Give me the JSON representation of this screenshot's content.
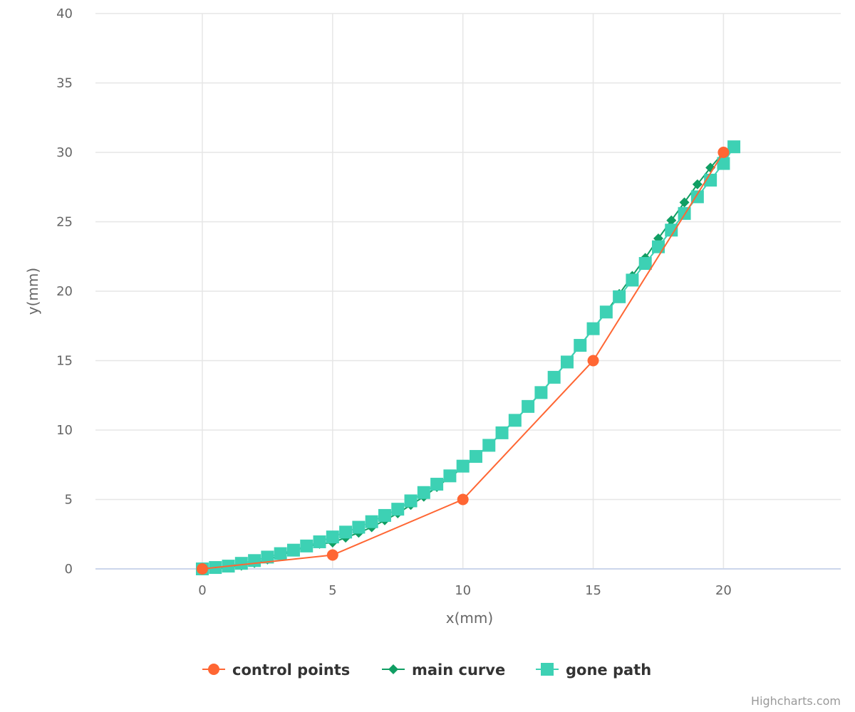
{
  "credits": "Highcharts.com",
  "chart_data": {
    "type": "line",
    "title": "",
    "xlabel": "x(mm)",
    "ylabel": "y(mm)",
    "xlim": [
      -4.1,
      24.5
    ],
    "ylim": [
      0,
      40
    ],
    "x_ticks": [
      "0",
      "5",
      "10",
      "15",
      "20"
    ],
    "y_ticks": [
      "0",
      "5",
      "10",
      "15",
      "20",
      "25",
      "30",
      "35",
      "40"
    ],
    "grid": true,
    "legend_position": "bottom-center",
    "series": [
      {
        "name": "control points",
        "marker": "circle",
        "color": "#ff6633",
        "x": [
          0,
          5,
          10,
          15,
          20
        ],
        "y": [
          0,
          1,
          5,
          15,
          30
        ]
      },
      {
        "name": "main curve",
        "marker": "diamond",
        "color": "#109e63",
        "x": [
          0,
          0.5,
          1,
          1.5,
          2,
          2.5,
          3,
          3.5,
          4,
          4.5,
          5,
          5.5,
          6,
          6.5,
          7,
          7.5,
          8,
          8.5,
          9,
          9.5,
          10,
          10.5,
          11,
          11.5,
          12,
          12.5,
          13,
          13.5,
          14,
          14.5,
          15,
          15.5,
          16,
          16.5,
          17,
          17.5,
          18,
          18.5,
          19,
          19.5,
          20
        ],
        "y": [
          0,
          0.02,
          0.1,
          0.23,
          0.42,
          0.67,
          0.97,
          1.3,
          1.6,
          1.8,
          1.9,
          2.25,
          2.6,
          3.0,
          3.5,
          4.0,
          4.6,
          5.2,
          5.9,
          6.6,
          7.3,
          8.1,
          8.9,
          9.8,
          10.7,
          11.7,
          12.7,
          13.8,
          14.9,
          16.1,
          17.3,
          18.5,
          19.8,
          21.1,
          22.4,
          23.8,
          25.1,
          26.4,
          27.7,
          28.9,
          30.0
        ]
      },
      {
        "name": "gone path",
        "marker": "square",
        "color": "#3dd1b4",
        "x": [
          0,
          0.5,
          1,
          1.5,
          2,
          2.5,
          3,
          3.5,
          4,
          4.5,
          5,
          5.5,
          6,
          6.5,
          7,
          7.5,
          8,
          8.5,
          9,
          9.5,
          10,
          10.5,
          11,
          11.5,
          12,
          12.5,
          13,
          13.5,
          14,
          14.5,
          15,
          15.5,
          16,
          16.5,
          17,
          17.5,
          18,
          18.5,
          19,
          19.5,
          20,
          20.4
        ],
        "y": [
          0,
          0.1,
          0.2,
          0.4,
          0.6,
          0.85,
          1.1,
          1.35,
          1.65,
          1.95,
          2.3,
          2.65,
          3.0,
          3.4,
          3.85,
          4.3,
          4.9,
          5.5,
          6.1,
          6.7,
          7.4,
          8.1,
          8.9,
          9.8,
          10.7,
          11.7,
          12.7,
          13.8,
          14.9,
          16.1,
          17.3,
          18.5,
          19.6,
          20.8,
          22.0,
          23.2,
          24.4,
          25.6,
          26.8,
          28.0,
          29.2,
          30.4
        ]
      }
    ]
  }
}
